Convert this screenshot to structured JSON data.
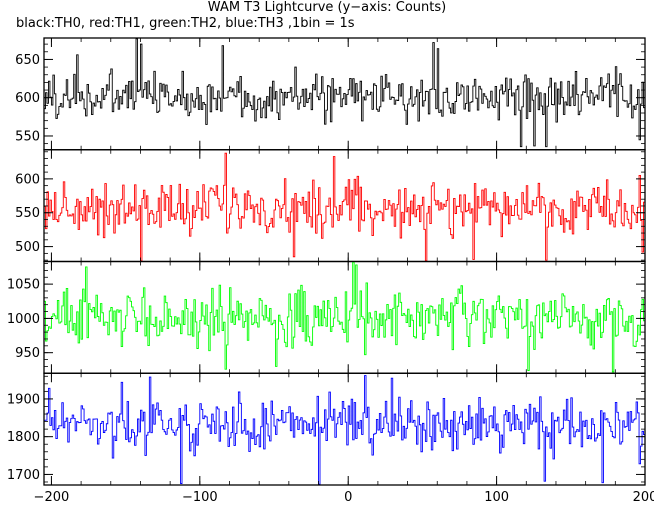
{
  "chart_data": {
    "type": "line",
    "title": "WAM T3 Lightcurve (y−axis: Counts)",
    "subtitle": "black:TH0, red:TH1, green:TH2, blue:TH3 ,1bin = 1s",
    "xlabel": "",
    "ylabel": "",
    "xlim": [
      -205,
      200
    ],
    "x_ticks": [
      -200,
      -100,
      0,
      100,
      200
    ],
    "x_tick_labels": [
      "−200",
      "−100",
      "0",
      "100",
      "200"
    ],
    "x_step": 1,
    "grid": false,
    "panels": [
      {
        "name": "TH0",
        "color": "#000000",
        "ylim": [
          532,
          678
        ],
        "y_ticks": [
          550,
          600,
          650
        ],
        "mean": 601,
        "noise": 20,
        "spikes": [
          [
            -183,
            656
          ],
          [
            -143,
            678
          ],
          [
            -140,
            670
          ],
          [
            -85,
            668
          ],
          [
            57,
            672
          ],
          [
            60,
            664
          ],
          [
            116,
            536
          ],
          [
            125,
            537
          ],
          [
            133,
            536
          ],
          [
            196,
            545
          ]
        ]
      },
      {
        "name": "TH1",
        "color": "#ff0000",
        "ylim": [
          478,
          643
        ],
        "y_ticks": [
          500,
          550,
          600
        ],
        "mean": 557,
        "noise": 24,
        "spikes": [
          [
            -140,
            478
          ],
          [
            -83,
            638
          ],
          [
            -37,
            485
          ],
          [
            -10,
            633
          ],
          [
            52,
            478
          ],
          [
            84,
            481
          ],
          [
            133,
            480
          ],
          [
            198,
            492
          ]
        ]
      },
      {
        "name": "TH2",
        "color": "#00ff00",
        "ylim": [
          920,
          1083
        ],
        "y_ticks": [
          950,
          1000,
          1050
        ],
        "mean": 1000,
        "noise": 26,
        "spikes": [
          [
            -177,
            1075
          ],
          [
            -83,
            926
          ],
          [
            -49,
            930
          ],
          [
            3,
            1083
          ],
          [
            5,
            1078
          ],
          [
            121,
            924
          ],
          [
            178,
            922
          ]
        ]
      },
      {
        "name": "TH3",
        "color": "#0000ff",
        "ylim": [
          1672,
          1968
        ],
        "y_ticks": [
          1700,
          1800,
          1900
        ],
        "mean": 1832,
        "noise": 42,
        "spikes": [
          [
            -202,
            1928
          ],
          [
            -153,
            1944
          ],
          [
            -134,
            1958
          ],
          [
            -113,
            1676
          ],
          [
            -20,
            1674
          ],
          [
            11,
            1962
          ],
          [
            29,
            1955
          ],
          [
            132,
            1682
          ],
          [
            171,
            1678
          ],
          [
            196,
            1728
          ]
        ]
      }
    ]
  }
}
